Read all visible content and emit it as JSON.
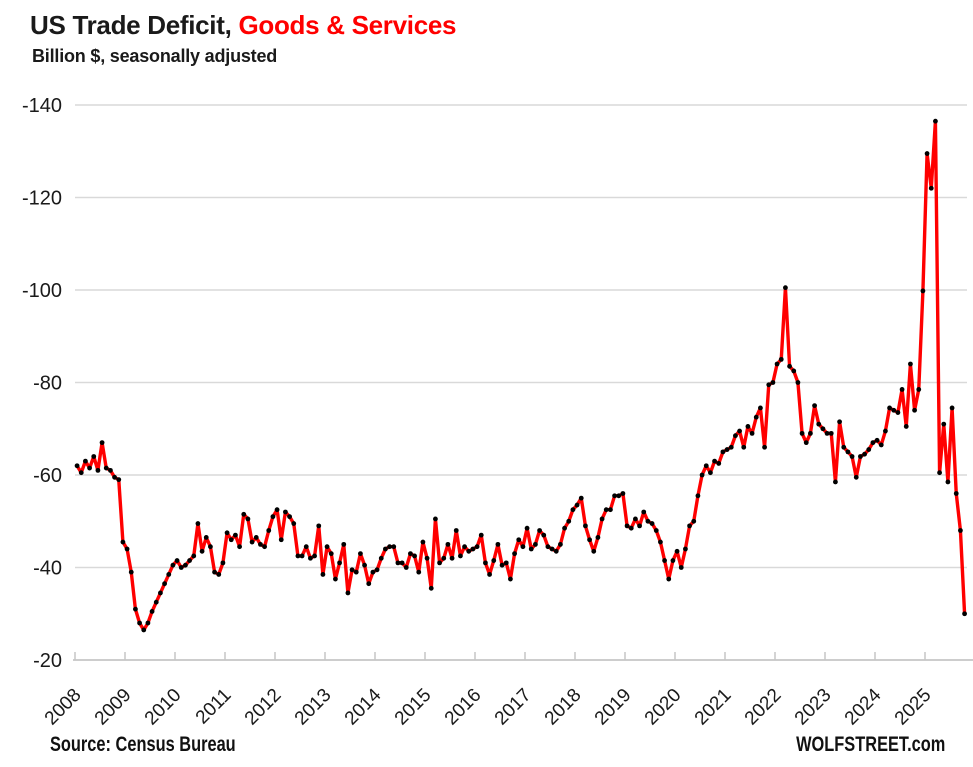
{
  "header": {
    "title_black": "US Trade Deficit, ",
    "title_red": "Goods & Services",
    "subtitle": "Billion $, seasonally adjusted"
  },
  "footer": {
    "source": "Source: Census Bureau",
    "watermark": "WOLFSTREET.com"
  },
  "chart_data": {
    "type": "line",
    "title": "US Trade Deficit, Goods & Services",
    "subtitle": "Billion $, seasonally adjusted",
    "unit": "billion USD, seasonally adjusted, monthly",
    "x_start": "2008-01",
    "x_end": "2025-10",
    "x_tick_labels": [
      "2008",
      "2009",
      "2010",
      "2011",
      "2012",
      "2013",
      "2014",
      "2015",
      "2016",
      "2017",
      "2018",
      "2019",
      "2020",
      "2021",
      "2022",
      "2023",
      "2024",
      "2025"
    ],
    "y_ticks": [
      -140,
      -120,
      -100,
      -80,
      -60,
      -40,
      -20
    ],
    "y_tick_labels": [
      "-140",
      "-120",
      "-100",
      "-80",
      "-60",
      "-40",
      "-20"
    ],
    "ylim": [
      -145,
      -20
    ],
    "grid": "horizontal",
    "legend": "none",
    "series_color": "#ff0000",
    "marker_color": "#000000",
    "grid_color": "#d9d9d9",
    "axis_color": "#c6c6c6",
    "values_by_year": [
      {
        "year": 2008,
        "monthly": [
          -62,
          -60.5,
          -63,
          -61.5,
          -64,
          -61,
          -67,
          -61.5,
          -61,
          -59.5,
          -59,
          -45.5
        ]
      },
      {
        "year": 2009,
        "monthly": [
          -44,
          -39,
          -31,
          -28,
          -26.5,
          -28,
          -30.5,
          -32.5,
          -34.5,
          -36.5,
          -38.5,
          -40.5
        ]
      },
      {
        "year": 2010,
        "monthly": [
          -41.5,
          -40,
          -40.5,
          -41.5,
          -42.5,
          -49.5,
          -43.5,
          -46.5,
          -44.5,
          -39,
          -38.5,
          -41
        ]
      },
      {
        "year": 2011,
        "monthly": [
          -47.5,
          -46,
          -47,
          -44.5,
          -51.5,
          -50.5,
          -45.5,
          -46.5,
          -45,
          -44.5,
          -48,
          -51
        ]
      },
      {
        "year": 2012,
        "monthly": [
          -52.5,
          -46,
          -52,
          -51,
          -49.5,
          -42.5,
          -42.5,
          -44.5,
          -42,
          -42.5,
          -49,
          -38.5
        ]
      },
      {
        "year": 2013,
        "monthly": [
          -44.5,
          -43,
          -37.5,
          -41,
          -45,
          -34.5,
          -39.5,
          -39,
          -43,
          -40.5,
          -36.5,
          -39
        ]
      },
      {
        "year": 2014,
        "monthly": [
          -39.5,
          -42,
          -44,
          -44.5,
          -44.5,
          -41,
          -41,
          -40,
          -43,
          -42.5,
          -39,
          -45.5
        ]
      },
      {
        "year": 2015,
        "monthly": [
          -42,
          -35.5,
          -50.5,
          -41,
          -42,
          -45,
          -42,
          -48,
          -42.5,
          -44.5,
          -43.5,
          -44
        ]
      },
      {
        "year": 2016,
        "monthly": [
          -44.5,
          -47,
          -41,
          -38.5,
          -41.5,
          -45,
          -40.5,
          -41,
          -37.5,
          -43,
          -46,
          -44.5
        ]
      },
      {
        "year": 2017,
        "monthly": [
          -48.5,
          -44,
          -45,
          -48,
          -47,
          -44.5,
          -44,
          -43.5,
          -45,
          -48.5,
          -50,
          -52.5
        ]
      },
      {
        "year": 2018,
        "monthly": [
          -53.5,
          -55,
          -49,
          -46,
          -43.5,
          -46.5,
          -50.5,
          -52.5,
          -52.5,
          -55.5,
          -55.5,
          -56
        ]
      },
      {
        "year": 2019,
        "monthly": [
          -49,
          -48.5,
          -50.5,
          -49,
          -52,
          -50,
          -49.5,
          -48,
          -45.5,
          -41.5,
          -37.5,
          -41.5
        ]
      },
      {
        "year": 2020,
        "monthly": [
          -43.5,
          -40,
          -44,
          -49,
          -50,
          -55.5,
          -60,
          -62,
          -60.5,
          -63,
          -62.5,
          -65
        ]
      },
      {
        "year": 2021,
        "monthly": [
          -65.5,
          -66,
          -68.5,
          -69.5,
          -66,
          -70.5,
          -69,
          -72.5,
          -74.5,
          -66,
          -79.5,
          -80
        ]
      },
      {
        "year": 2022,
        "monthly": [
          -84,
          -85,
          -100.5,
          -83.5,
          -82.5,
          -80,
          -69,
          -67,
          -69,
          -75,
          -71,
          -70
        ]
      },
      {
        "year": 2023,
        "monthly": [
          -69,
          -69,
          -58.5,
          -71.5,
          -66,
          -65,
          -64,
          -59.5,
          -64,
          -64.5,
          -65.5,
          -67
        ]
      },
      {
        "year": 2024,
        "monthly": [
          -67.5,
          -66.5,
          -69.5,
          -74.5,
          -74,
          -73.5,
          -78.5,
          -70.5,
          -84,
          -74,
          -78.5,
          -99.8
        ]
      },
      {
        "year": 2025,
        "monthly": [
          -129.5,
          -122,
          -136.5,
          -60.5,
          -71,
          -58.5,
          -74.5,
          -56,
          -48,
          -30
        ]
      }
    ]
  }
}
